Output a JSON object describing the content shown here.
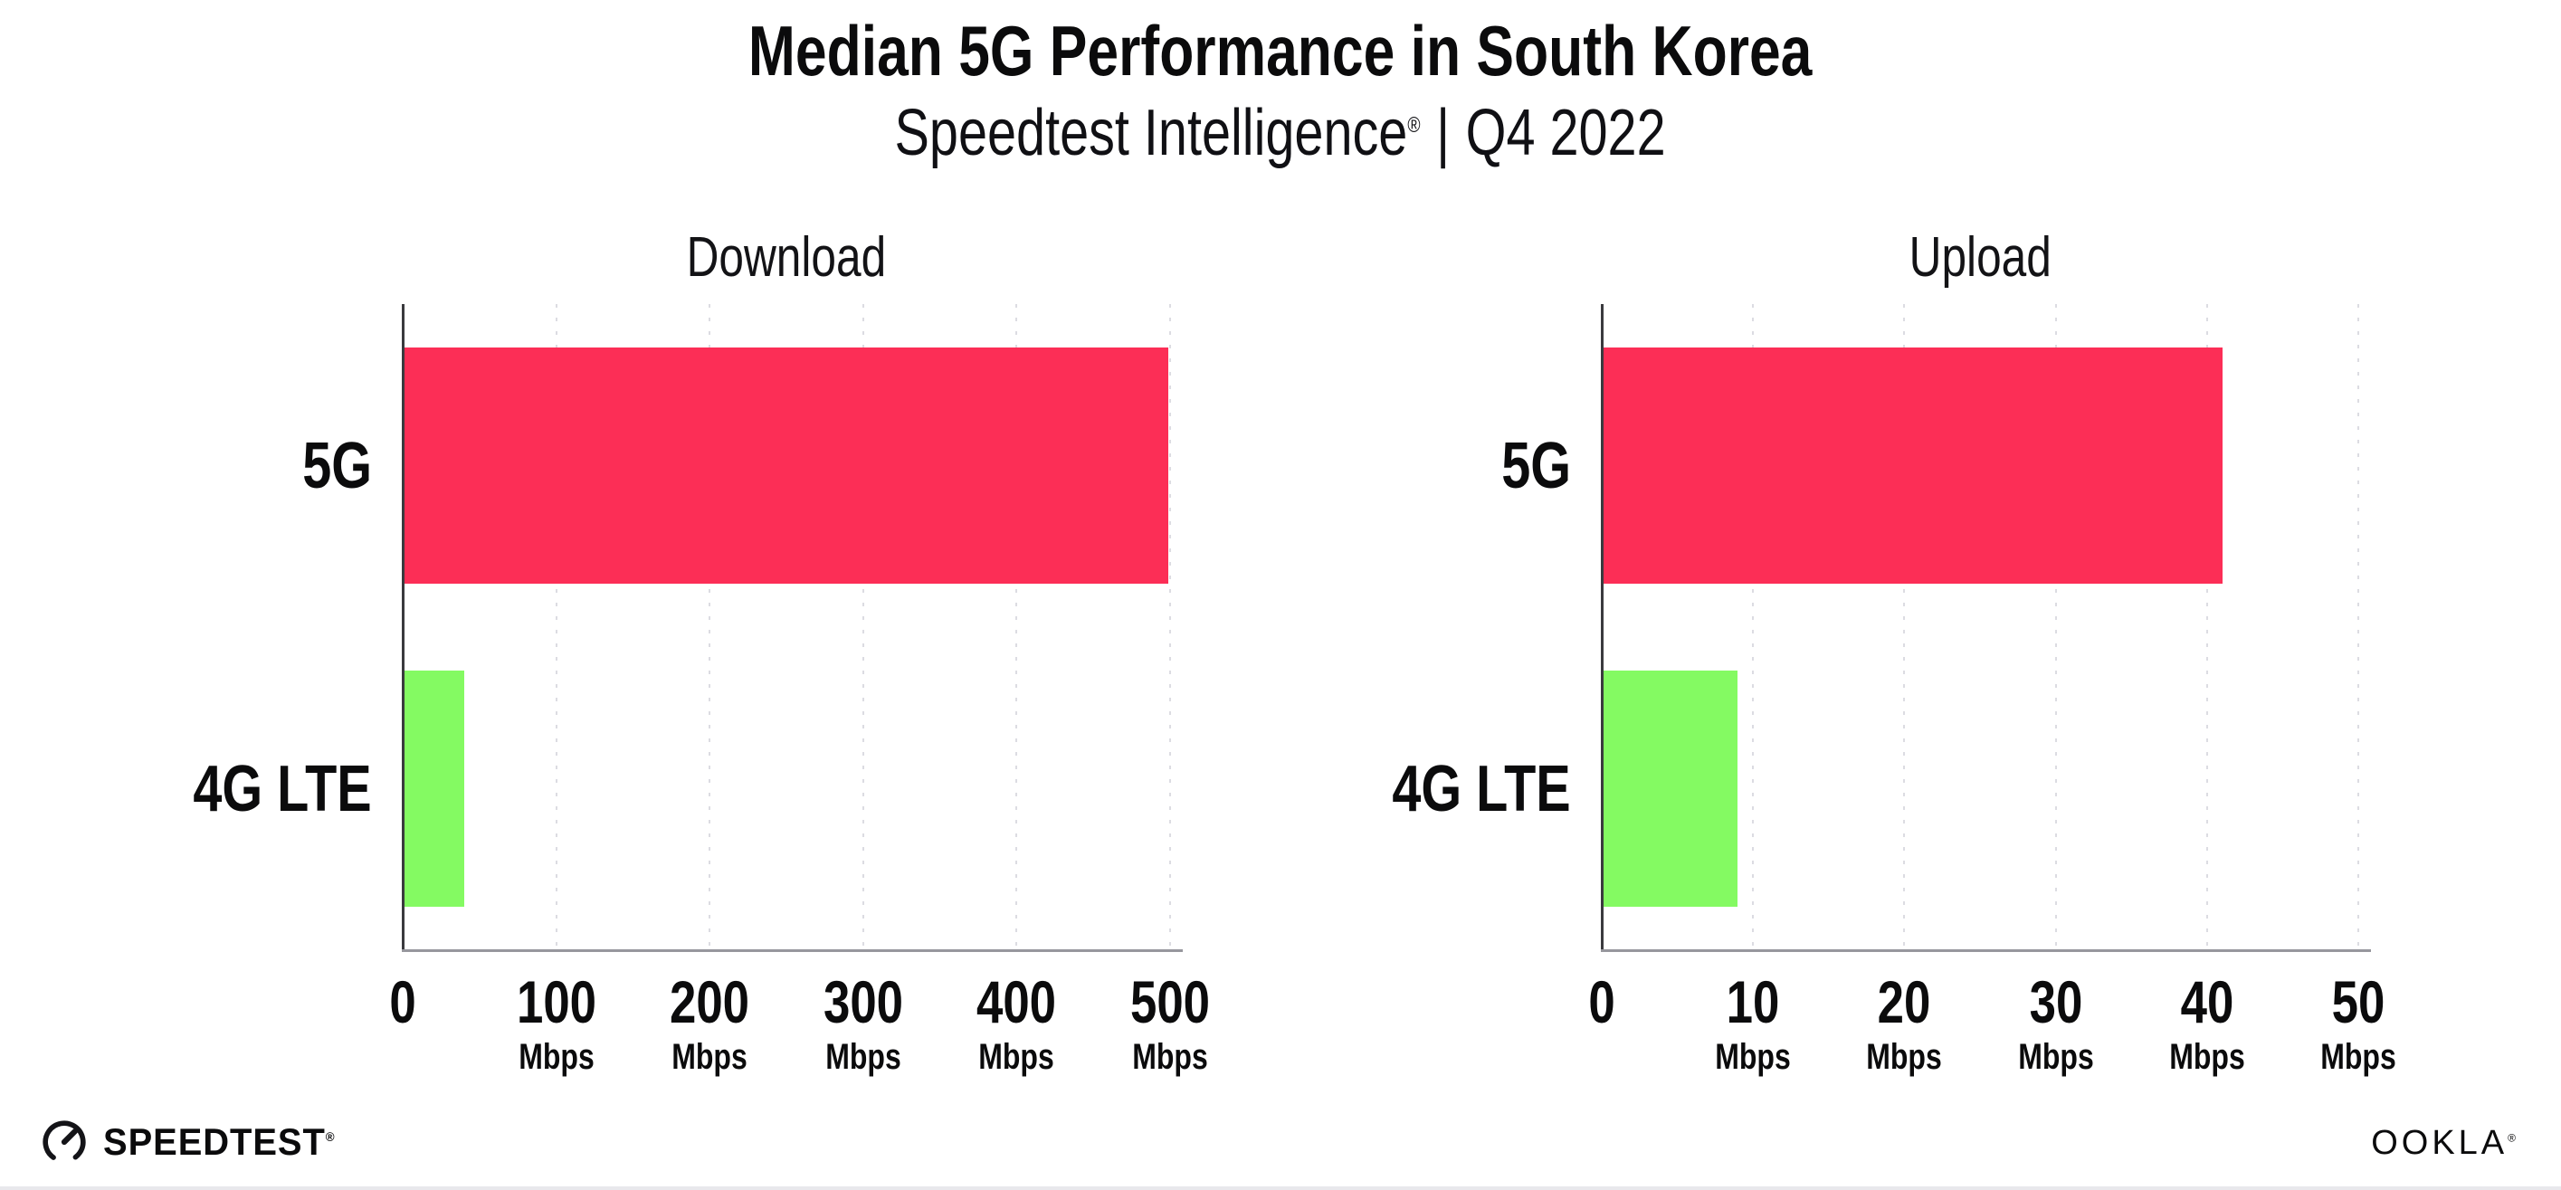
{
  "header": {
    "title": "Median 5G Performance in South Korea",
    "subtitle_brand": "Speedtest Intelligence",
    "subtitle_reg": "®",
    "subtitle_sep": "|",
    "subtitle_period": "Q4 2022"
  },
  "colors": {
    "bar_5g": "#FC2E56",
    "bar_4g_lte": "#84FA62",
    "gridline": "#DCDCE2",
    "x_axis": "#97979D",
    "y_axis": "#3A3A3E",
    "text": "#0B0B0C"
  },
  "chart_data": [
    {
      "type": "bar",
      "orientation": "horizontal",
      "title": "Download",
      "categories": [
        "5G",
        "4G LTE"
      ],
      "values": [
        499,
        40
      ],
      "unit": "Mbps",
      "xticks": [
        0,
        100,
        200,
        300,
        400,
        500
      ],
      "xlim": [
        0,
        500
      ],
      "grid": "vertical-dotted",
      "legend": "none",
      "series_colors": [
        "bar_5g",
        "bar_4g_lte"
      ]
    },
    {
      "type": "bar",
      "orientation": "horizontal",
      "title": "Upload",
      "categories": [
        "5G",
        "4G LTE"
      ],
      "values": [
        41,
        9
      ],
      "unit": "Mbps",
      "xticks": [
        0,
        10,
        20,
        30,
        40,
        50
      ],
      "xlim": [
        0,
        50
      ],
      "grid": "vertical-dotted",
      "legend": "none",
      "series_colors": [
        "bar_5g",
        "bar_4g_lte"
      ]
    }
  ],
  "footer": {
    "speedtest_label": "SPEEDTEST",
    "speedtest_mark": "®",
    "ookla_label": "OOKLA",
    "ookla_mark": "®"
  }
}
